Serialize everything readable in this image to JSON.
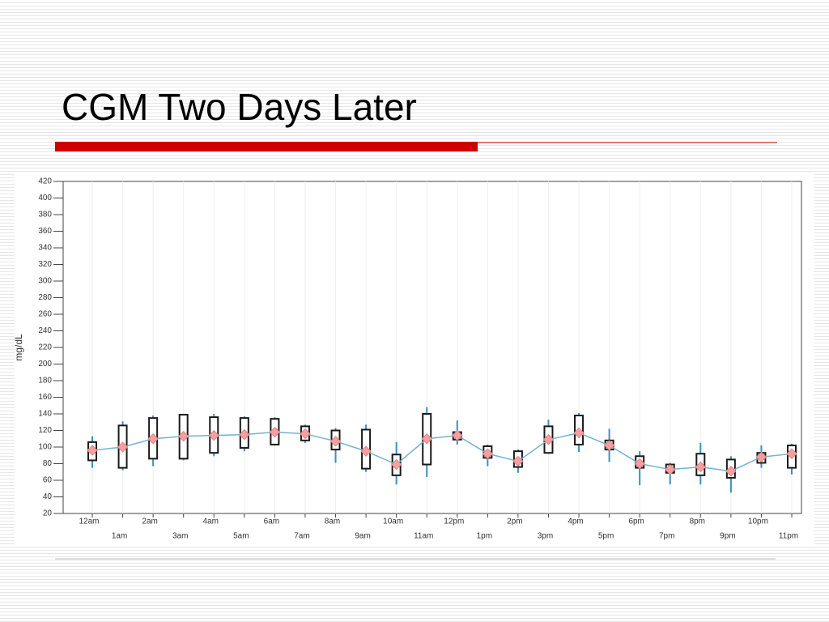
{
  "chart_data": {
    "type": "box",
    "title": "CGM Two Days Later",
    "y_label": "mg/dL",
    "categories": [
      "12am",
      "1am",
      "2am",
      "3am",
      "4am",
      "5am",
      "6am",
      "7am",
      "8am",
      "9am",
      "10am",
      "11am",
      "12pm",
      "1pm",
      "2pm",
      "3pm",
      "4pm",
      "5pm",
      "6pm",
      "7pm",
      "8pm",
      "9pm",
      "10pm",
      "11pm"
    ],
    "low": [
      75,
      72,
      77,
      84,
      89,
      95,
      102,
      105,
      81,
      70,
      55,
      64,
      103,
      77,
      69,
      92,
      94,
      82,
      54,
      55,
      55,
      45,
      75,
      67
    ],
    "q1": [
      84,
      75,
      86,
      86,
      93,
      99,
      103,
      108,
      97,
      74,
      66,
      79,
      109,
      87,
      76,
      93,
      103,
      97,
      75,
      69,
      66,
      63,
      81,
      75
    ],
    "q3": [
      106,
      126,
      135,
      139,
      136,
      135,
      134,
      125,
      120,
      121,
      91,
      140,
      118,
      101,
      95,
      125,
      138,
      108,
      89,
      79,
      92,
      85,
      93,
      102
    ],
    "high": [
      113,
      131,
      138,
      140,
      140,
      137,
      136,
      127,
      123,
      127,
      106,
      148,
      132,
      103,
      97,
      133,
      141,
      122,
      95,
      81,
      105,
      89,
      102,
      104
    ],
    "mean": [
      96,
      100,
      110,
      113,
      114,
      115,
      118,
      116,
      107,
      95,
      79,
      110,
      114,
      92,
      83,
      109,
      117,
      102,
      80,
      73,
      76,
      71,
      88,
      92
    ],
    "box_color": "#1a1a1a",
    "whisker_color": "#3a8fc4",
    "mean_color": "#f4a0a0",
    "line_color": "#6fb3d8",
    "ylim": [
      20,
      420
    ],
    "yticks": [
      20,
      40,
      60,
      80,
      100,
      120,
      140,
      160,
      180,
      200,
      220,
      240,
      260,
      280,
      300,
      320,
      340,
      360,
      380,
      400,
      420
    ],
    "grid": true
  }
}
